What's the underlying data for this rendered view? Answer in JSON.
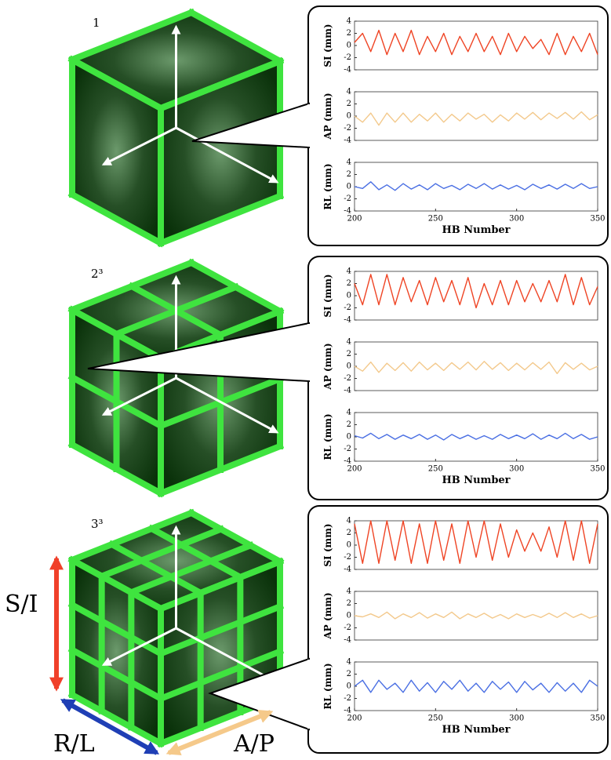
{
  "cube_labels": [
    "1",
    "2³",
    "3³"
  ],
  "direction_labels": {
    "si": "S/I",
    "rl": "R/L",
    "ap": "A/P"
  },
  "chart_data": [
    {
      "type": "line",
      "ylabel": "SI (mm)",
      "color": "#ef4424",
      "xlim": [
        200,
        350
      ],
      "ylim": [
        -4,
        4
      ],
      "yticks": [
        -4,
        -2,
        0,
        2,
        4
      ],
      "x": [
        200,
        205,
        210,
        215,
        220,
        225,
        230,
        235,
        240,
        245,
        250,
        255,
        260,
        265,
        270,
        275,
        280,
        285,
        290,
        295,
        300,
        305,
        310,
        315,
        320,
        325,
        330,
        335,
        340,
        345,
        350
      ],
      "values": [
        0.5,
        2,
        -1,
        2.5,
        -1.5,
        2,
        -1,
        2.5,
        -1.5,
        1.5,
        -1,
        2,
        -1.5,
        1.5,
        -1,
        2,
        -1,
        1.5,
        -1.5,
        2,
        -1,
        1.5,
        -0.5,
        1,
        -1.5,
        2,
        -1.5,
        1.5,
        -1,
        2,
        -1.5
      ]
    },
    {
      "type": "line",
      "ylabel": "AP (mm)",
      "color": "#f3c98c",
      "xlim": [
        200,
        350
      ],
      "ylim": [
        -4,
        4
      ],
      "yticks": [
        -4,
        -2,
        0,
        2,
        4
      ],
      "x": [
        200,
        205,
        210,
        215,
        220,
        225,
        230,
        235,
        240,
        245,
        250,
        255,
        260,
        265,
        270,
        275,
        280,
        285,
        290,
        295,
        300,
        305,
        310,
        315,
        320,
        325,
        330,
        335,
        340,
        345,
        350
      ],
      "values": [
        0,
        -1,
        0.5,
        -1.5,
        0.5,
        -1,
        0.5,
        -1,
        0.3,
        -0.8,
        0.5,
        -1,
        0.3,
        -0.8,
        0.5,
        -0.5,
        0.3,
        -1,
        0.2,
        -0.8,
        0.5,
        -0.5,
        0.6,
        -0.6,
        0.5,
        -0.4,
        0.6,
        -0.5,
        0.7,
        -0.6,
        0.2
      ]
    },
    {
      "type": "line",
      "ylabel": "RL (mm)",
      "color": "#4a6fe3",
      "xlim": [
        200,
        350
      ],
      "ylim": [
        -4,
        4
      ],
      "yticks": [
        -4,
        -2,
        0,
        2,
        4
      ],
      "xticks": [
        200,
        250,
        300,
        350
      ],
      "xlabel": "HB Number",
      "x": [
        200,
        205,
        210,
        215,
        220,
        225,
        230,
        235,
        240,
        245,
        250,
        255,
        260,
        265,
        270,
        275,
        280,
        285,
        290,
        295,
        300,
        305,
        310,
        315,
        320,
        325,
        330,
        335,
        340,
        345,
        350
      ],
      "values": [
        0,
        -0.3,
        0.8,
        -0.5,
        0.3,
        -0.6,
        0.5,
        -0.4,
        0.3,
        -0.5,
        0.5,
        -0.3,
        0.2,
        -0.5,
        0.4,
        -0.3,
        0.5,
        -0.4,
        0.3,
        -0.4,
        0.2,
        -0.5,
        0.4,
        -0.3,
        0.3,
        -0.4,
        0.4,
        -0.3,
        0.5,
        -0.3,
        0
      ]
    },
    {
      "type": "line",
      "ylabel": "SI (mm)",
      "color": "#ef4424",
      "xlim": [
        200,
        350
      ],
      "ylim": [
        -4,
        4
      ],
      "yticks": [
        -4,
        -2,
        0,
        2,
        4
      ],
      "x": [
        200,
        205,
        210,
        215,
        220,
        225,
        230,
        235,
        240,
        245,
        250,
        255,
        260,
        265,
        270,
        275,
        280,
        285,
        290,
        295,
        300,
        305,
        310,
        315,
        320,
        325,
        330,
        335,
        340,
        345,
        350
      ],
      "values": [
        2,
        -1.5,
        3.5,
        -1.5,
        3.5,
        -1.5,
        3,
        -1,
        2.5,
        -1.5,
        3,
        -1,
        2.5,
        -1.5,
        3,
        -2,
        2,
        -1.5,
        2.5,
        -1.5,
        2.5,
        -1,
        2,
        -1,
        2.5,
        -1,
        3.5,
        -1.5,
        3,
        -1.5,
        1.5
      ]
    },
    {
      "type": "line",
      "ylabel": "AP (mm)",
      "color": "#f3c98c",
      "xlim": [
        200,
        350
      ],
      "ylim": [
        -4,
        4
      ],
      "yticks": [
        -4,
        -2,
        0,
        2,
        4
      ],
      "x": [
        200,
        205,
        210,
        215,
        220,
        225,
        230,
        235,
        240,
        245,
        250,
        255,
        260,
        265,
        270,
        275,
        280,
        285,
        290,
        295,
        300,
        305,
        310,
        315,
        320,
        325,
        330,
        335,
        340,
        345,
        350
      ],
      "values": [
        0,
        -0.8,
        0.7,
        -1,
        0.5,
        -0.7,
        0.6,
        -0.8,
        0.7,
        -0.6,
        0.5,
        -0.7,
        0.6,
        -0.5,
        0.7,
        -0.6,
        0.8,
        -0.5,
        0.6,
        -0.7,
        0.5,
        -0.6,
        0.6,
        -0.5,
        0.7,
        -1.2,
        0.6,
        -0.5,
        0.5,
        -0.6,
        0
      ]
    },
    {
      "type": "line",
      "ylabel": "RL (mm)",
      "color": "#4a6fe3",
      "xlim": [
        200,
        350
      ],
      "ylim": [
        -4,
        4
      ],
      "yticks": [
        -4,
        -2,
        0,
        2,
        4
      ],
      "xticks": [
        200,
        250,
        300,
        350
      ],
      "xlabel": "HB Number",
      "x": [
        200,
        205,
        210,
        215,
        220,
        225,
        230,
        235,
        240,
        245,
        250,
        255,
        260,
        265,
        270,
        275,
        280,
        285,
        290,
        295,
        300,
        305,
        310,
        315,
        320,
        325,
        330,
        335,
        340,
        345,
        350
      ],
      "values": [
        0.2,
        -0.2,
        0.6,
        -0.3,
        0.4,
        -0.4,
        0.3,
        -0.3,
        0.4,
        -0.4,
        0.3,
        -0.5,
        0.4,
        -0.3,
        0.3,
        -0.4,
        0.2,
        -0.4,
        0.4,
        -0.3,
        0.3,
        -0.3,
        0.5,
        -0.4,
        0.3,
        -0.3,
        0.6,
        -0.3,
        0.4,
        -0.4,
        0
      ]
    },
    {
      "type": "line",
      "ylabel": "SI (mm)",
      "color": "#ef4424",
      "xlim": [
        200,
        350
      ],
      "ylim": [
        -4,
        4
      ],
      "yticks": [
        -4,
        -2,
        0,
        2,
        4
      ],
      "x": [
        200,
        205,
        210,
        215,
        220,
        225,
        230,
        235,
        240,
        245,
        250,
        255,
        260,
        265,
        270,
        275,
        280,
        285,
        290,
        295,
        300,
        305,
        310,
        315,
        320,
        325,
        330,
        335,
        340,
        345,
        350
      ],
      "values": [
        3.5,
        -3,
        4,
        -3,
        4,
        -2.5,
        4,
        -3,
        3.5,
        -3,
        4,
        -2.5,
        3.5,
        -3,
        4,
        -2,
        4,
        -2.5,
        3.5,
        -2,
        2.5,
        -1,
        2,
        -1,
        3,
        -2,
        4,
        -2.5,
        4,
        -3,
        3.5
      ]
    },
    {
      "type": "line",
      "ylabel": "AP (mm)",
      "color": "#f3c98c",
      "xlim": [
        200,
        350
      ],
      "ylim": [
        -4,
        4
      ],
      "yticks": [
        -4,
        -2,
        0,
        2,
        4
      ],
      "x": [
        200,
        205,
        210,
        215,
        220,
        225,
        230,
        235,
        240,
        245,
        250,
        255,
        260,
        265,
        270,
        275,
        280,
        285,
        290,
        295,
        300,
        305,
        310,
        315,
        320,
        325,
        330,
        335,
        340,
        345,
        350
      ],
      "values": [
        0,
        -0.2,
        0.3,
        -0.3,
        0.6,
        -0.5,
        0.3,
        -0.3,
        0.5,
        -0.4,
        0.3,
        -0.3,
        0.6,
        -0.5,
        0.3,
        -0.3,
        0.4,
        -0.4,
        0.2,
        -0.5,
        0.3,
        -0.3,
        0.2,
        -0.3,
        0.4,
        -0.3,
        0.5,
        -0.3,
        0.3,
        -0.4,
        0
      ]
    },
    {
      "type": "line",
      "ylabel": "RL (mm)",
      "color": "#4a6fe3",
      "xlim": [
        200,
        350
      ],
      "ylim": [
        -4,
        4
      ],
      "yticks": [
        -4,
        -2,
        0,
        2,
        4
      ],
      "xticks": [
        200,
        250,
        300,
        350
      ],
      "xlabel": "HB Number",
      "x": [
        200,
        205,
        210,
        215,
        220,
        225,
        230,
        235,
        240,
        245,
        250,
        255,
        260,
        265,
        270,
        275,
        280,
        285,
        290,
        295,
        300,
        305,
        310,
        315,
        320,
        325,
        330,
        335,
        340,
        345,
        350
      ],
      "values": [
        0,
        1,
        -1,
        1,
        -0.5,
        0.5,
        -1,
        1,
        -0.8,
        0.6,
        -1,
        0.8,
        -0.5,
        1,
        -0.8,
        0.5,
        -1,
        0.8,
        -0.5,
        0.7,
        -1,
        0.8,
        -0.6,
        0.5,
        -1,
        0.6,
        -0.8,
        0.5,
        -1,
        1,
        0
      ]
    }
  ]
}
